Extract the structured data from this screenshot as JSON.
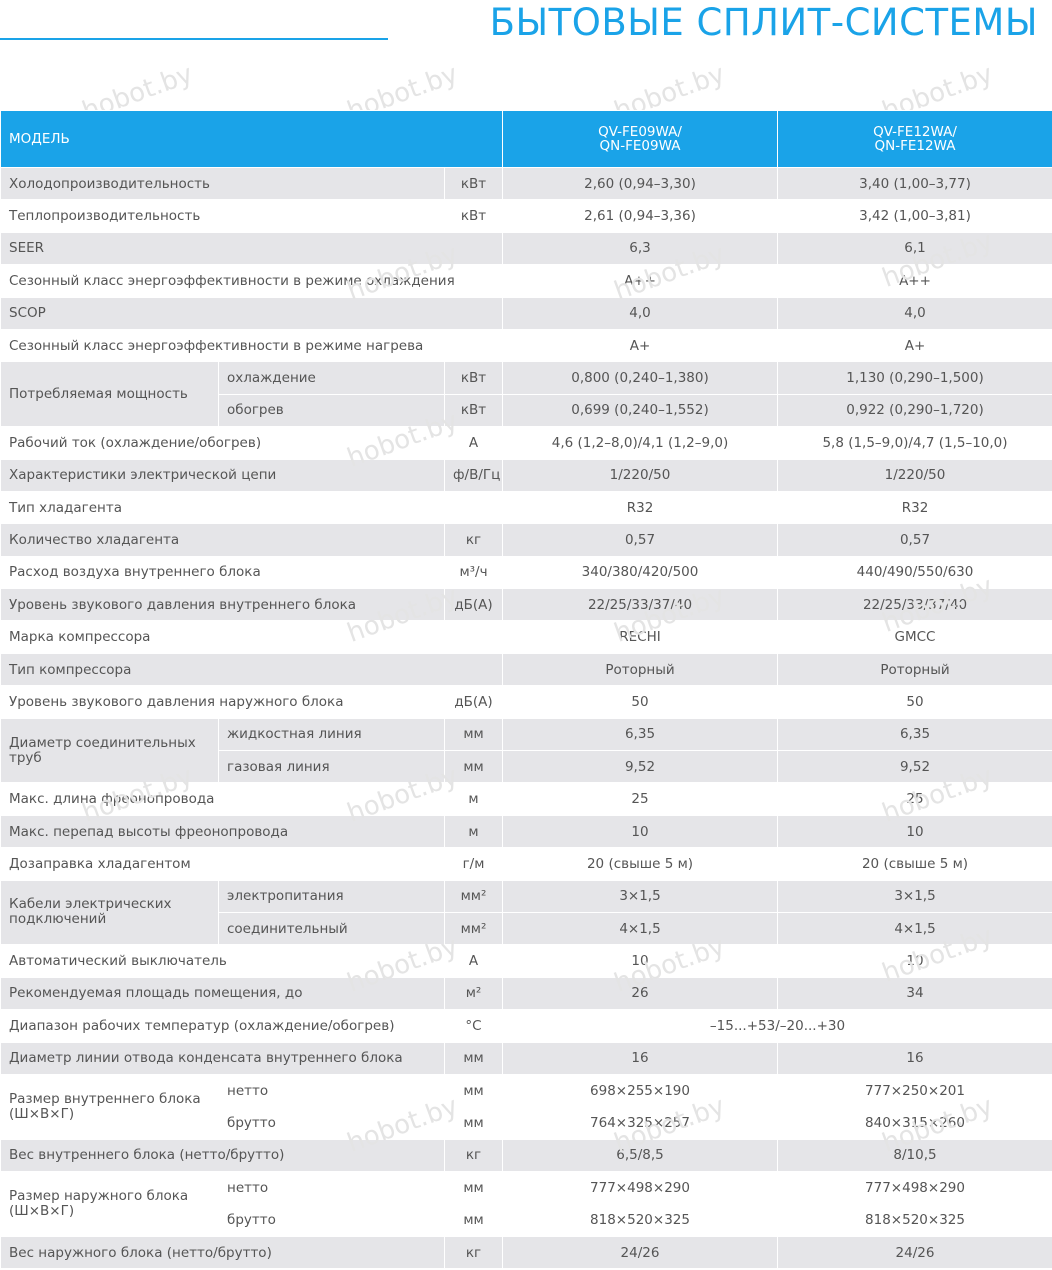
{
  "title": "БЫТОВЫЕ СПЛИТ-СИСТЕМЫ",
  "watermark": "hobot.by",
  "header": {
    "model_label": "МОДЕЛЬ",
    "col1_line1": "QV-FE09WA/",
    "col1_line2": "QN-FE09WA",
    "col2_line1": "QV-FE12WA/",
    "col2_line2": "QN-FE12WA"
  },
  "rows": [
    {
      "label": "Холодопроизводительность",
      "unit": "кВт",
      "v1": "2,60 (0,94–3,30)",
      "v2": "3,40 (1,00–3,77)"
    },
    {
      "label": "Теплопроизводительность",
      "unit": "кВт",
      "v1": "2,61 (0,94–3,36)",
      "v2": "3,42 (1,00–3,81)"
    },
    {
      "label": "SEER",
      "unit": "",
      "v1": "6,3",
      "v2": "6,1"
    },
    {
      "label": "Сезонный класс энергоэффективности в режиме охлаждения",
      "unit": "",
      "v1": "A++",
      "v2": "A++"
    },
    {
      "label": "SCOP",
      "unit": "",
      "v1": "4,0",
      "v2": "4,0"
    },
    {
      "label": "Сезонный класс энергоэффективности в режиме нагрева",
      "unit": "",
      "v1": "A+",
      "v2": "A+"
    },
    {
      "label": "Потребляемая мощность",
      "sub1": "охлаждение",
      "unit1": "кВт",
      "v1a": "0,800 (0,240–1,380)",
      "v2a": "1,130 (0,290–1,500)",
      "sub2": "обогрев",
      "unit2": "кВт",
      "v1b": "0,699 (0,240–1,552)",
      "v2b": "0,922 (0,290–1,720)"
    },
    {
      "label": "Рабочий ток (охлаждение/обогрев)",
      "unit": "А",
      "v1": "4,6 (1,2–8,0)/4,1 (1,2–9,0)",
      "v2": "5,8 (1,5–9,0)/4,7 (1,5–10,0)"
    },
    {
      "label": "Характеристики электрической цепи",
      "unit": "ф/В/Гц",
      "v1": "1/220/50",
      "v2": "1/220/50"
    },
    {
      "label": "Тип хладагента",
      "unit": "",
      "v1": "R32",
      "v2": "R32"
    },
    {
      "label": "Количество хладагента",
      "unit": "кг",
      "v1": "0,57",
      "v2": "0,57"
    },
    {
      "label": "Расход воздуха внутреннего блока",
      "unit": "м³/ч",
      "v1": "340/380/420/500",
      "v2": "440/490/550/630"
    },
    {
      "label": "Уровень звукового давления внутреннего блока",
      "unit": "дБ(А)",
      "v1": "22/25/33/37/40",
      "v2": "22/25/33/37/40"
    },
    {
      "label": "Марка компрессора",
      "unit": "",
      "v1": "RECHI",
      "v2": "GMCC"
    },
    {
      "label": "Тип компрессора",
      "unit": "",
      "v1": "Роторный",
      "v2": "Роторный"
    },
    {
      "label": "Уровень звукового давления наружного блока",
      "unit": "дБ(А)",
      "v1": "50",
      "v2": "50"
    },
    {
      "label": "Диаметр соединительных труб",
      "sub1": "жидкостная линия",
      "unit1": "мм",
      "v1a": "6,35",
      "v2a": "6,35",
      "sub2": "газовая линия",
      "unit2": "мм",
      "v1b": "9,52",
      "v2b": "9,52"
    },
    {
      "label": "Макс. длина фреонопровода",
      "unit": "м",
      "v1": "25",
      "v2": "25"
    },
    {
      "label": "Макс. перепад высоты фреонопровода",
      "unit": "м",
      "v1": "10",
      "v2": "10"
    },
    {
      "label": "Дозаправка хладагентом",
      "unit": "г/м",
      "v1": "20 (свыше 5 м)",
      "v2": "20 (свыше 5 м)"
    },
    {
      "label": "Кабели электрических подключений",
      "sub1": "электропитания",
      "unit1": "мм²",
      "v1a": "3×1,5",
      "v2a": "3×1,5",
      "sub2": "соединительный",
      "unit2": "мм²",
      "v1b": "4×1,5",
      "v2b": "4×1,5"
    },
    {
      "label": "Автоматический выключатель",
      "unit": "А",
      "v1": "10",
      "v2": "10"
    },
    {
      "label": "Рекомендуемая площадь помещения, до",
      "unit": "м²",
      "v1": "26",
      "v2": "34"
    },
    {
      "label": "Диапазон рабочих температур (охлаждение/обогрев)",
      "unit": "°С",
      "vspan": "–15...+53/–20...+30"
    },
    {
      "label": "Диаметр линии отвода конденсата внутреннего блока",
      "unit": "мм",
      "v1": "16",
      "v2": "16"
    },
    {
      "label": "Размер внутреннего блока (Ш×В×Г)",
      "sub1": "нетто",
      "unit1": "мм",
      "v1a": "698×255×190",
      "v2a": "777×250×201",
      "sub2": "брутто",
      "unit2": "мм",
      "v1b": "764×325×257",
      "v2b": "840×315×260"
    },
    {
      "label": "Вес внутреннего блока (нетто/брутто)",
      "unit": "кг",
      "v1": "6,5/8,5",
      "v2": "8/10,5"
    },
    {
      "label": "Размер наружного блока (Ш×В×Г)",
      "sub1": "нетто",
      "unit1": "мм",
      "v1a": "777×498×290",
      "v2a": "777×498×290",
      "sub2": "брутто",
      "unit2": "мм",
      "v1b": "818×520×325",
      "v2b": "818×520×325"
    },
    {
      "label": "Вес наружного блока (нетто/брутто)",
      "unit": "кг",
      "v1": "24/26",
      "v2": "24/26"
    }
  ]
}
